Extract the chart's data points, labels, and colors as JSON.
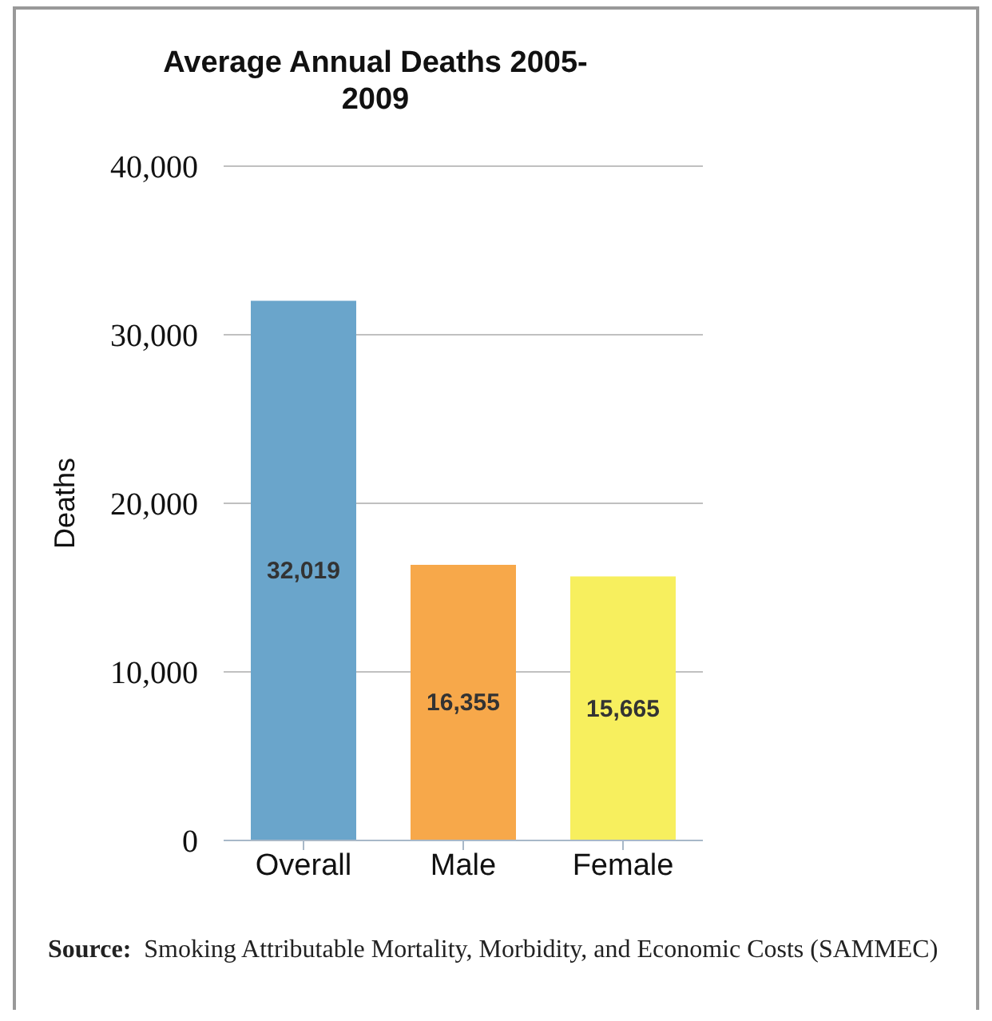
{
  "chart_data": {
    "type": "bar",
    "title": "Average Annual Deaths 2005-2009",
    "ylabel": "Deaths",
    "categories": [
      "Overall",
      "Male",
      "Female"
    ],
    "values": [
      32019,
      16355,
      15665
    ],
    "colors": [
      "#6aa5cb",
      "#f7a84a",
      "#f7ef5e"
    ],
    "ylim": [
      0,
      40000
    ],
    "yticks": [
      {
        "value": 0,
        "label": "0"
      },
      {
        "value": 10000,
        "label": "10,000"
      },
      {
        "value": 20000,
        "label": "20,000"
      },
      {
        "value": 30000,
        "label": "30,000"
      },
      {
        "value": 40000,
        "label": "40,000"
      }
    ],
    "grid": "y",
    "value_labels": [
      "32,019",
      "16,355",
      "15,665"
    ],
    "legend": false,
    "annotations": [
      "Source: Smoking Attributable Mortality, Morbidity, and Economic Costs (SAMMEC)"
    ]
  }
}
